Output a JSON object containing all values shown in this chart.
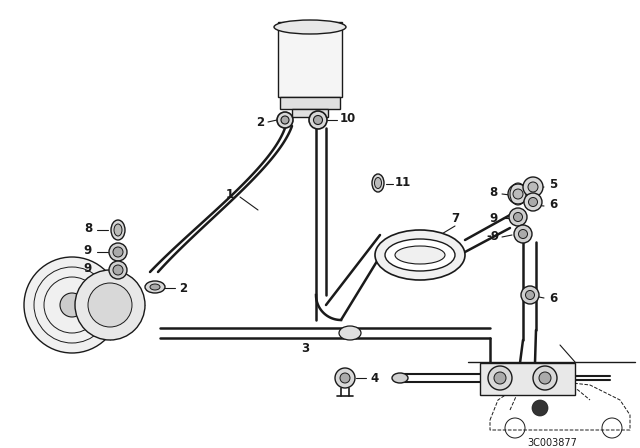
{
  "bg_color": "#ffffff",
  "line_color": "#1a1a1a",
  "diagram_code": "3C003877",
  "fig_width": 6.4,
  "fig_height": 4.48,
  "dpi": 100
}
